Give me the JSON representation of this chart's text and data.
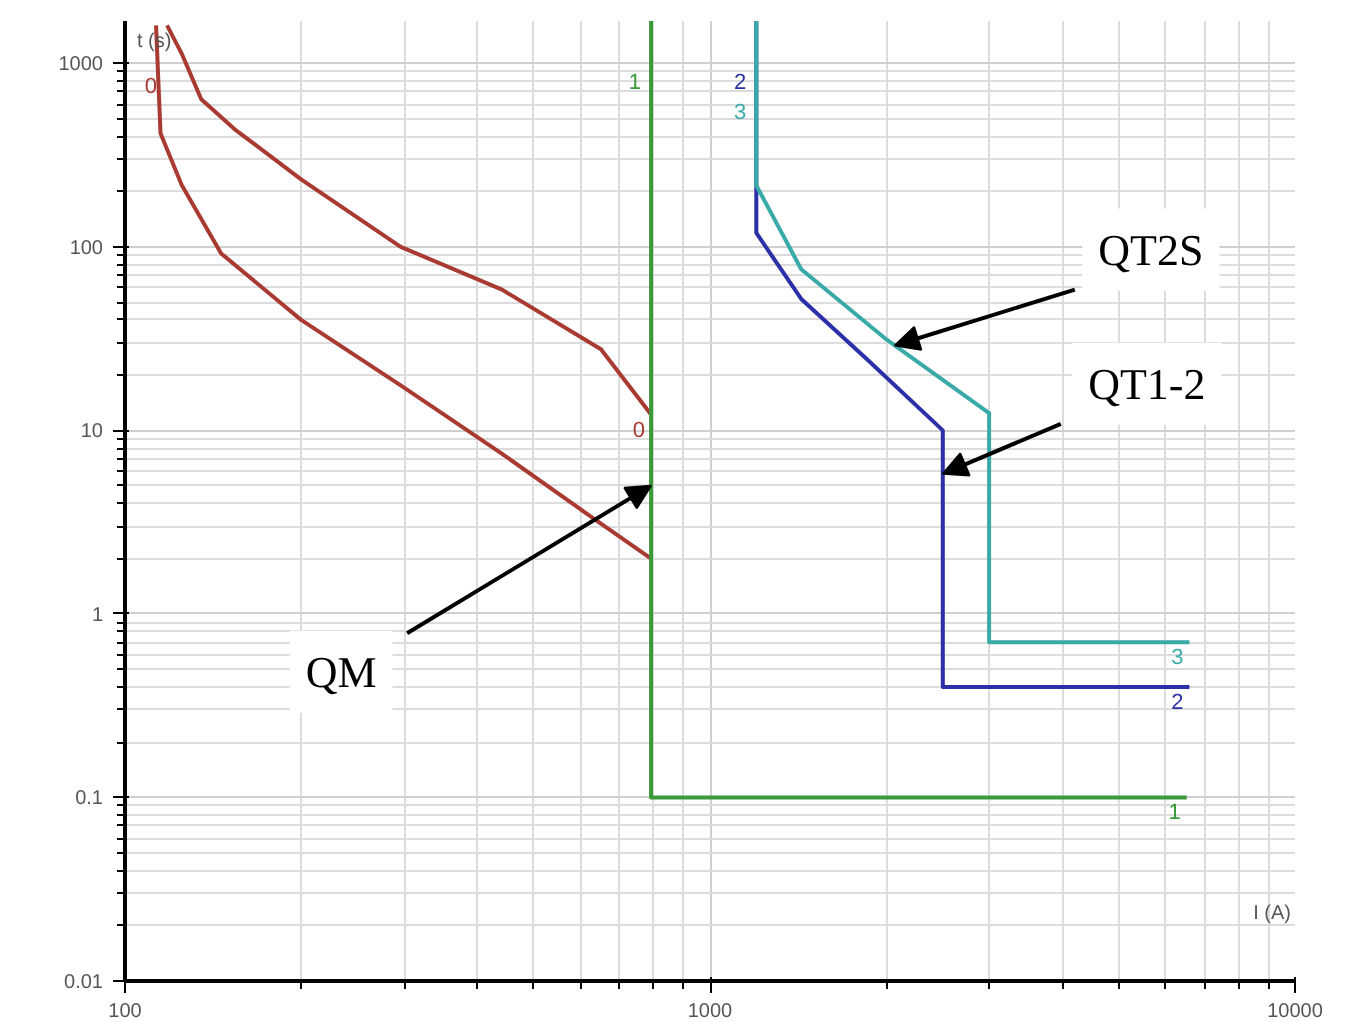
{
  "chart_data": {
    "type": "line",
    "xlabel": "I (A)",
    "ylabel": "t (s)",
    "log": "xy",
    "grid": true,
    "legend": false,
    "marker": "none",
    "line_style": "solid",
    "xlim": [
      100,
      10000
    ],
    "ylim": [
      0.01,
      1700
    ],
    "xticks": [
      100,
      1000,
      10000
    ],
    "yticks": [
      0.01,
      0.1,
      1,
      10,
      100,
      1000
    ],
    "series": [
      {
        "name": "0",
        "color": "#a83a32",
        "x": [
          118,
          125,
          135,
          154,
          200,
          296,
          440,
          651,
          793
        ],
        "values": [
          1610,
          1130,
          637,
          437,
          233,
          100,
          58.7,
          27.7,
          12.2
        ]
      },
      {
        "color": "#a83a32",
        "x": [
          113,
          115,
          125,
          146,
          200,
          296,
          440,
          617,
          793
        ],
        "values": [
          1610,
          416,
          217,
          92,
          40,
          17.6,
          7.5,
          3.5,
          2.0
        ]
      },
      {
        "name": "1",
        "color": "#3a9a3a",
        "x": [
          793,
          793,
          6530
        ],
        "values": [
          1700,
          0.1,
          0.1
        ]
      },
      {
        "name": "2",
        "color": "#2b2fa8",
        "x": [
          1200,
          1200,
          1432,
          1855,
          2500,
          2500,
          6600
        ],
        "values": [
          1700,
          119,
          52,
          24.4,
          10,
          0.4,
          0.4
        ]
      },
      {
        "name": "3",
        "color": "#3aaaa8",
        "x": [
          1200,
          1200,
          1432,
          2010,
          3000,
          3000,
          6600
        ],
        "values": [
          1700,
          216,
          75.5,
          31,
          12.4,
          0.7,
          0.7
        ]
      }
    ],
    "annotations": [
      {
        "text": "QM",
        "x": 793,
        "y": 5
      },
      {
        "text": "QT2S",
        "x": 2070,
        "y": 29
      },
      {
        "text": "QT1-2",
        "x": 2500,
        "y": 5.8
      }
    ]
  }
}
